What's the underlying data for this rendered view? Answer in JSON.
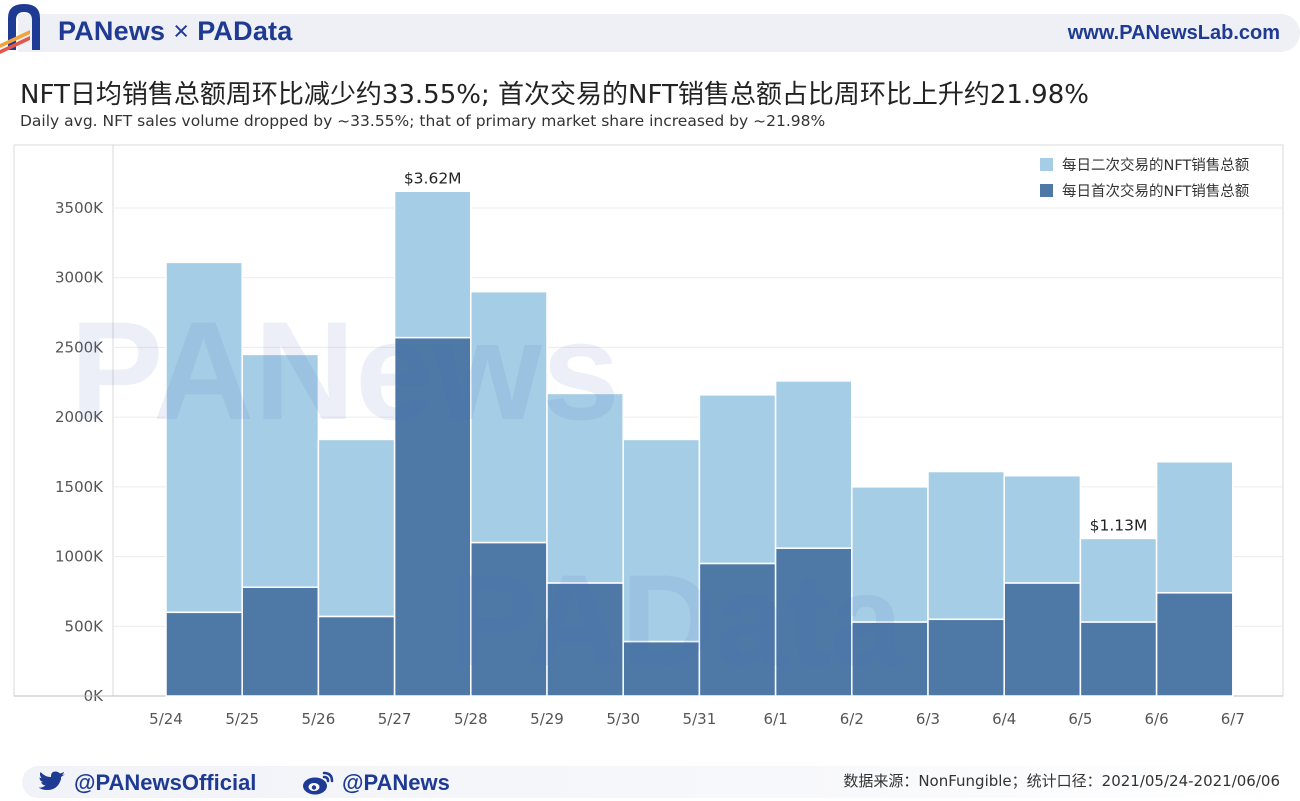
{
  "header": {
    "brand_left": "PANews",
    "brand_sep": "×",
    "brand_right": "PAData",
    "url": "www.PANewsLab.com"
  },
  "title": "NFT日均销售总额周环比减少约33.55%; 首次交易的NFT销售总额占比周环比上升约21.98%",
  "subtitle": "Daily avg. NFT sales volume dropped by ~33.55%; that of primary market share increased by ~21.98%",
  "watermarks": [
    "PANews",
    "PAData"
  ],
  "footer": {
    "twitter": "@PANewsOfficial",
    "weibo": "@PANews",
    "source": "数据来源：NonFungible；统计口径：2021/05/24-2021/06/06"
  },
  "colors": {
    "secondary": "#a6cde6",
    "primary": "#4e79a7",
    "brand": "#1f3a93"
  },
  "chart_data": {
    "type": "bar",
    "stacked": true,
    "categories": [
      "5/24",
      "5/25",
      "5/26",
      "5/27",
      "5/28",
      "5/29",
      "5/30",
      "5/31",
      "6/1",
      "6/2",
      "6/3",
      "6/4",
      "6/5",
      "6/6",
      "6/7"
    ],
    "series": [
      {
        "name": "每日首次交易的NFT销售总额",
        "color": "#4e79a7",
        "values": [
          0,
          600,
          780,
          570,
          2570,
          1100,
          810,
          390,
          950,
          1060,
          530,
          550,
          810,
          530,
          740
        ]
      },
      {
        "name": "每日二次交易的NFT销售总额",
        "color": "#a6cde6",
        "values": [
          0,
          2510,
          1670,
          1270,
          1050,
          1800,
          1360,
          1450,
          1210,
          1200,
          970,
          1060,
          770,
          600,
          940
        ]
      }
    ],
    "ylim": [
      0,
      3900
    ],
    "yticks": [
      0,
      500,
      1000,
      1500,
      2000,
      2500,
      3000,
      3500
    ],
    "ytick_labels": [
      "0K",
      "500K",
      "1000K",
      "1500K",
      "2000K",
      "2500K",
      "3000K",
      "3500K"
    ],
    "annotations": [
      {
        "category_index": 4,
        "text": "$3.62M"
      },
      {
        "category_index": 13,
        "text": "$1.13M"
      }
    ],
    "legend": "top-right",
    "grid": true
  }
}
